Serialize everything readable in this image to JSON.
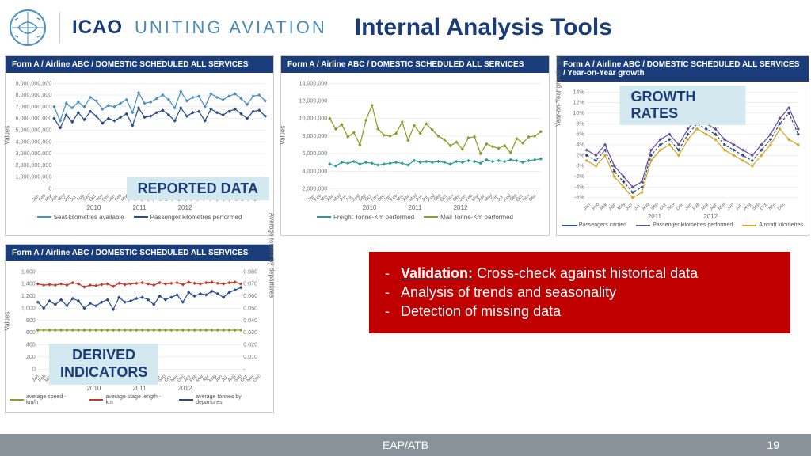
{
  "header": {
    "icao": "ICAO",
    "uniting": "UNITING AVIATION",
    "title": "Internal Analysis Tools"
  },
  "chart1": {
    "header": "Form A / Airline ABC / DOMESTIC SCHEDULED ALL SERVICES",
    "overlay": "REPORTED DATA",
    "y_label": "Values",
    "ylim": [
      0,
      9000000000
    ],
    "ytick_labels": [
      "0",
      "1,000,000,000",
      "2,000,000,000",
      "3,000,000,000",
      "4,000,000,000",
      "5,000,000,000",
      "6,000,000,000",
      "7,000,000,000",
      "8,000,000,000",
      "9,000,000,000"
    ],
    "series1": {
      "name": "Seat kilometres available",
      "color": "#4a90c0",
      "values": [
        7.0,
        5.8,
        7.3,
        6.9,
        7.4,
        7.0,
        7.8,
        7.5,
        6.8,
        7.1,
        7.0,
        7.3,
        7.6,
        6.5,
        8.2,
        7.3,
        7.4,
        7.7,
        8.0,
        7.6,
        6.9,
        8.3,
        7.5,
        7.8,
        7.9,
        7.0,
        8.1,
        7.8,
        7.6,
        7.9,
        8.1,
        7.7,
        7.2,
        7.9,
        8.0,
        7.5
      ]
    },
    "series2": {
      "name": "Passenger kilometres performed",
      "color": "#2a4d8a",
      "values": [
        6.0,
        5.2,
        6.3,
        5.7,
        6.5,
        5.9,
        6.6,
        6.2,
        5.6,
        6.0,
        5.8,
        6.1,
        6.4,
        5.4,
        6.9,
        6.1,
        6.2,
        6.5,
        6.7,
        6.3,
        5.8,
        6.9,
        6.2,
        6.5,
        6.6,
        5.8,
        6.8,
        6.5,
        6.3,
        6.6,
        6.8,
        6.4,
        6.0,
        6.6,
        6.7,
        6.2
      ]
    },
    "x_months": [
      "Jan",
      "Feb",
      "Mar",
      "Apr",
      "May",
      "Jun",
      "Jul",
      "Aug",
      "Sep",
      "Oct",
      "Nov",
      "Dec",
      "Jan",
      "Feb",
      "Mar",
      "Apr",
      "May",
      "Jun",
      "Jul",
      "Aug",
      "Sep",
      "Oct",
      "Nov",
      "Dec",
      "Jan",
      "Feb",
      "Mar",
      "Apr",
      "May",
      "Jun",
      "Jul",
      "Aug",
      "Sep",
      "Oct",
      "Nov",
      "Dec"
    ],
    "years": [
      "2010",
      "2011",
      "2012"
    ]
  },
  "chart2": {
    "header": "Form A / Airline ABC / DOMESTIC SCHEDULED ALL SERVICES",
    "y_label": "Values",
    "ylim": [
      2000000,
      14000000
    ],
    "ytick_labels": [
      "2,000,000",
      "4,000,000",
      "6,000,000",
      "8,000,000",
      "10,000,000",
      "12,000,000",
      "14,000,000"
    ],
    "series1": {
      "name": "Freight Tonne-Km performed",
      "color": "#2a9d8f",
      "values": [
        4.8,
        4.6,
        5.0,
        4.9,
        5.1,
        4.8,
        5.0,
        4.9,
        4.7,
        4.8,
        4.9,
        5.0,
        4.9,
        4.7,
        5.2,
        5.0,
        5.1,
        5.0,
        5.1,
        5.0,
        4.8,
        5.1,
        5.0,
        5.2,
        5.1,
        4.9,
        5.3,
        5.1,
        5.2,
        5.1,
        5.3,
        5.2,
        5.0,
        5.2,
        5.3,
        5.4
      ]
    },
    "series2": {
      "name": "Mail Tonne-Km performed",
      "color": "#8a9d2a",
      "values": [
        10.0,
        8.8,
        9.3,
        7.9,
        8.4,
        7.0,
        9.8,
        11.5,
        8.8,
        8.1,
        8.0,
        8.3,
        9.6,
        7.5,
        9.2,
        8.3,
        9.4,
        8.7,
        8.0,
        7.6,
        6.9,
        7.3,
        6.5,
        7.8,
        7.9,
        6.0,
        7.1,
        6.8,
        6.6,
        6.9,
        6.1,
        7.7,
        7.2,
        7.9,
        8.0,
        8.5
      ]
    },
    "years": [
      "2010",
      "2011",
      "2012"
    ]
  },
  "chart3": {
    "header": "Form A / Airline ABC / DOMESTIC SCHEDULED ALL SERVICES / Year-on-Year growth",
    "overlay": "GROWTH RATES",
    "y_label": "Year-on-Year growth rate",
    "ylim": [
      -6,
      14
    ],
    "ytick_labels": [
      "-6%",
      "-4%",
      "-2%",
      "0%",
      "2%",
      "4%",
      "6%",
      "8%",
      "10%",
      "12%",
      "14%"
    ],
    "series1": {
      "name": "Passengers carried",
      "color": "#2a4d8a",
      "dash": true,
      "values": [
        2,
        1,
        3,
        -1,
        -3,
        -5,
        -4,
        2,
        4,
        5,
        3,
        6,
        8,
        7,
        6,
        4,
        3,
        2,
        1,
        3,
        5,
        8,
        10,
        6
      ]
    },
    "series2": {
      "name": "Passenger kilometres performed",
      "color": "#6a4d9a",
      "dash": false,
      "values": [
        3,
        2,
        4,
        0,
        -2,
        -4,
        -3,
        3,
        5,
        6,
        4,
        7,
        9,
        8,
        7,
        5,
        4,
        3,
        2,
        4,
        6,
        9,
        11,
        7
      ]
    },
    "series3": {
      "name": "Aircraft kilometres",
      "color": "#d4a72a",
      "dash": false,
      "values": [
        1,
        0,
        2,
        -2,
        -4,
        -6,
        -5,
        1,
        3,
        4,
        2,
        5,
        7,
        6,
        5,
        3,
        2,
        1,
        0,
        2,
        4,
        7,
        5,
        4
      ]
    },
    "x_months": [
      "Jan",
      "Feb",
      "Mar",
      "Apr",
      "May",
      "Jun",
      "Jul",
      "Aug",
      "Sep",
      "Oct",
      "Nov",
      "Dec",
      "Jan",
      "Feb",
      "Mar",
      "Apr",
      "May",
      "Jun",
      "Jul",
      "Aug",
      "Sep",
      "Oct",
      "Nov",
      "Dec"
    ],
    "years": [
      "2011",
      "2012"
    ]
  },
  "chart4": {
    "header": "Form A / Airline ABC / DOMESTIC SCHEDULED ALL SERVICES",
    "overlay": "DERIVED INDICATORS",
    "y_label": "Values",
    "y_label_r": "Average tonnes by departures",
    "ylim_left": [
      0,
      1600
    ],
    "ytick_left": [
      "0",
      "200",
      "400",
      "600",
      "800",
      "1,000",
      "1,200",
      "1,400",
      "1,600"
    ],
    "ylim_right": [
      0,
      0.08
    ],
    "ytick_right": [
      "-",
      "0.010",
      "0.020",
      "0.030",
      "0.040",
      "0.050",
      "0.060",
      "0.070",
      "0.080"
    ],
    "series1": {
      "name": "average speed - km/h",
      "color": "#8a9d2a",
      "values": [
        640,
        640,
        640,
        640,
        640,
        640,
        640,
        640,
        640,
        640,
        640,
        640,
        640,
        640,
        640,
        640,
        640,
        640,
        640,
        640,
        640,
        640,
        640,
        640,
        640,
        640,
        640,
        640,
        640,
        640,
        640,
        640,
        640,
        640,
        640,
        640
      ]
    },
    "series2": {
      "name": "average stage length - km",
      "color": "#c0392b",
      "values": [
        1400,
        1380,
        1390,
        1380,
        1400,
        1380,
        1420,
        1400,
        1350,
        1380,
        1370,
        1390,
        1400,
        1360,
        1410,
        1390,
        1400,
        1410,
        1420,
        1400,
        1380,
        1420,
        1400,
        1410,
        1420,
        1390,
        1430,
        1410,
        1400,
        1420,
        1430,
        1410,
        1400,
        1420,
        1430,
        1400
      ]
    },
    "series3": {
      "name": "average tonnes by departures",
      "color": "#2a4d8a",
      "values": [
        0.055,
        0.05,
        0.056,
        0.053,
        0.057,
        0.052,
        0.058,
        0.056,
        0.05,
        0.054,
        0.052,
        0.055,
        0.057,
        0.049,
        0.059,
        0.055,
        0.056,
        0.058,
        0.059,
        0.057,
        0.053,
        0.06,
        0.057,
        0.059,
        0.061,
        0.055,
        0.063,
        0.06,
        0.062,
        0.061,
        0.064,
        0.062,
        0.059,
        0.063,
        0.065,
        0.067
      ]
    },
    "years": [
      "2010",
      "2011",
      "2012"
    ]
  },
  "redbox": {
    "validation_label": "Validation:",
    "validation_text": " Cross-check against historical data",
    "item2": "Analysis of trends and seasonality",
    "item3": "Detection of missing data"
  },
  "footer": {
    "text": "EAP/ATB",
    "page": "19"
  },
  "colors": {
    "header_bg": "#1a3d7a",
    "overlay_bg": "#d4e8f0",
    "red": "#c00000",
    "footer_bg": "#8a9299"
  }
}
